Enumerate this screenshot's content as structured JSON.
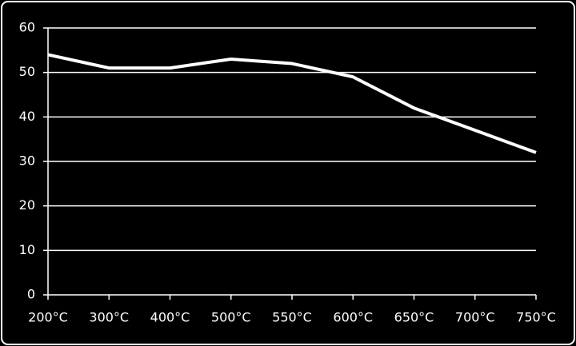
{
  "chart_data": {
    "type": "line",
    "categories": [
      "200°C",
      "300°C",
      "400°C",
      "500°C",
      "550°C",
      "600°C",
      "650°C",
      "700°C",
      "750°C"
    ],
    "values": [
      54,
      51,
      51,
      53,
      52,
      49,
      42,
      37,
      32
    ],
    "color": "#ffffff",
    "ylim": [
      0,
      60
    ],
    "yticks": [
      0,
      10,
      20,
      30,
      40,
      50,
      60
    ],
    "grid": true
  }
}
